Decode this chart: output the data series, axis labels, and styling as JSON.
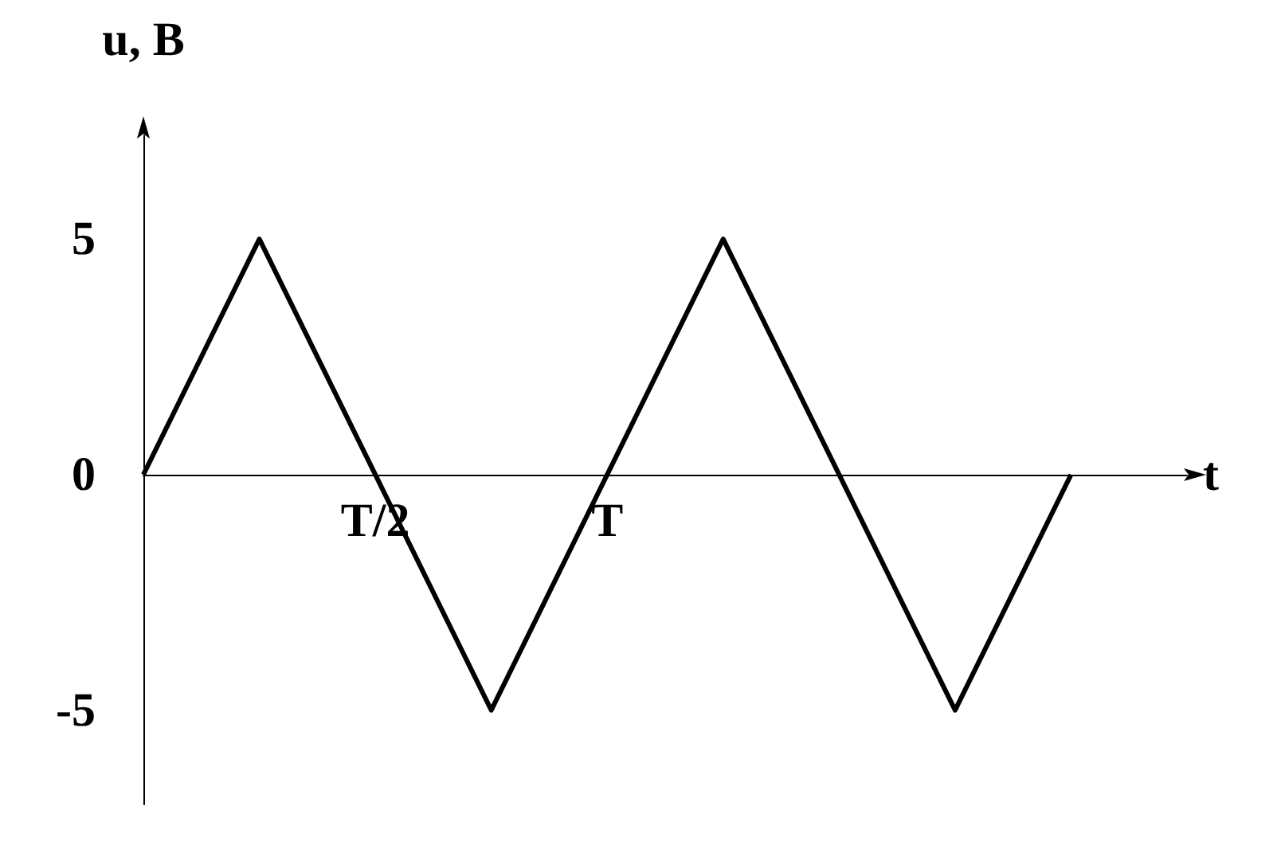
{
  "chart_data": {
    "type": "line",
    "xlabel": "t",
    "ylabel": "u, B",
    "categories": [
      null,
      null,
      "T/2",
      null,
      "T",
      null,
      null,
      null,
      null,
      null
    ],
    "series": [
      {
        "color": "#000000",
        "values": [
          0,
          5,
          0,
          -5,
          0,
          5,
          0,
          -5,
          0,
          null
        ]
      }
    ],
    "ylim": [
      -7,
      7.2
    ],
    "yticks": [
      -5,
      0,
      5
    ],
    "grid": false,
    "marker": "none",
    "line_style": "solid"
  }
}
